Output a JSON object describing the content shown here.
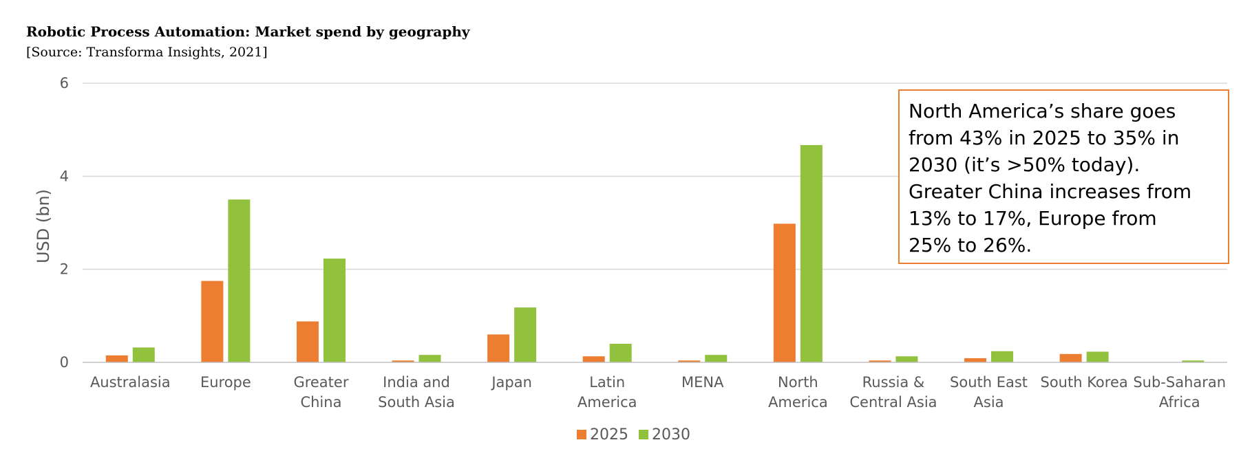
{
  "chart_data": {
    "type": "bar",
    "title": "Robotic Process Automation: Market spend by geography",
    "subtitle": "[Source: Transforma Insights, 2021]",
    "xlabel": "",
    "ylabel": "USD (bn)",
    "ylim": [
      0,
      6
    ],
    "yticks": [
      "0",
      "2",
      "4",
      "6"
    ],
    "grid": true,
    "legend_position": "bottom",
    "categories": [
      [
        "Australasia"
      ],
      [
        "Europe"
      ],
      [
        "Greater",
        "China"
      ],
      [
        "India and",
        "South Asia"
      ],
      [
        "Japan"
      ],
      [
        "Latin",
        "America"
      ],
      [
        "MENA"
      ],
      [
        "North",
        "America"
      ],
      [
        "Russia &",
        "Central Asia"
      ],
      [
        "South East",
        "Asia"
      ],
      [
        "South Korea"
      ],
      [
        "Sub-Saharan",
        "Africa"
      ]
    ],
    "series": [
      {
        "name": "2025",
        "color": "#ED7D31",
        "values": [
          0.15,
          1.75,
          0.88,
          0.04,
          0.6,
          0.13,
          0.04,
          2.98,
          0.04,
          0.09,
          0.18,
          0.0
        ]
      },
      {
        "name": "2030",
        "color": "#92C13E",
        "values": [
          0.32,
          3.5,
          2.23,
          0.16,
          1.18,
          0.4,
          0.16,
          4.67,
          0.13,
          0.24,
          0.23,
          0.04
        ]
      }
    ],
    "annotation": {
      "lines": [
        "North America’s share goes",
        "from 43% in 2025 to 35% in",
        "2030 (it’s >50% today).",
        "Greater China increases from",
        "13% to 17%, Europe from",
        "25% to 26%."
      ],
      "border_color": "#ED7D31"
    }
  }
}
